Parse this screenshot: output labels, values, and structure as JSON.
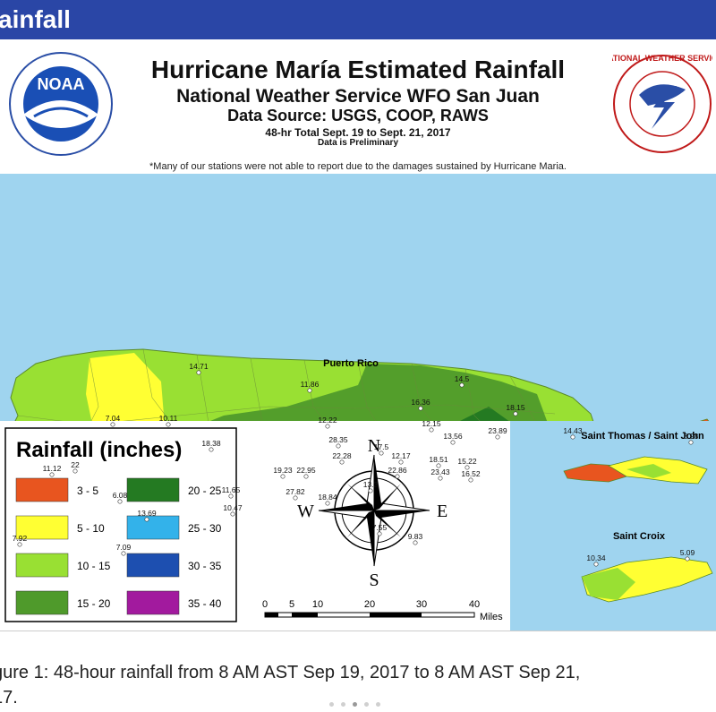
{
  "page": {
    "header_bar_text": "ainfall",
    "title": "Hurricane María Estimated Rainfall",
    "subtitle": "National Weather Service WFO San Juan",
    "data_source": "Data Source: USGS, COOP, RAWS",
    "period": "48-hr Total Sept. 19 to Sept. 21, 2017",
    "preliminary": "Data is Preliminary",
    "note": "*Many of our stations were not able to report due to the damages sustained by Hurricane Maria.",
    "caption_line1": "gure 1: 48-hour rainfall from 8 AM AST Sep 19, 2017 to 8 AM AST Sep 21,",
    "caption_line2": "17."
  },
  "logos": {
    "noaa_text": "NOAA",
    "nws_text": "NATIONAL WEATHER SERVICE"
  },
  "map": {
    "region_labels": {
      "puerto_rico": "Puerto Rico",
      "saint_thomas_john": "Saint Thomas / Saint John",
      "saint_croix": "Saint Croix"
    },
    "stations": [
      {
        "v": "14.71"
      },
      {
        "v": "11.86"
      },
      {
        "v": "14.5"
      },
      {
        "v": "7.04"
      },
      {
        "v": "10.11"
      },
      {
        "v": "16.36"
      },
      {
        "v": "18.15"
      },
      {
        "v": "12.22"
      },
      {
        "v": "12.15"
      },
      {
        "v": "23.89"
      },
      {
        "v": "14.43"
      },
      {
        "v": "18.38"
      },
      {
        "v": "28.35"
      },
      {
        "v": "13.56"
      },
      {
        "v": "17.5"
      },
      {
        "v": "22.28"
      },
      {
        "v": "12.17"
      },
      {
        "v": "18.51"
      },
      {
        "v": "15.22"
      },
      {
        "v": "22"
      },
      {
        "v": "11.12"
      },
      {
        "v": "19.23"
      },
      {
        "v": "22.95"
      },
      {
        "v": "22.86"
      },
      {
        "v": "23.43"
      },
      {
        "v": "16.52"
      },
      {
        "v": "11.65"
      },
      {
        "v": "13.3"
      },
      {
        "v": "6.08"
      },
      {
        "v": "27.82"
      },
      {
        "v": "18.84"
      },
      {
        "v": "10.47"
      },
      {
        "v": "13.69"
      },
      {
        "v": "7.55"
      },
      {
        "v": "9.83"
      },
      {
        "v": "7.92"
      },
      {
        "v": "7.09"
      },
      {
        "v": "3.98"
      },
      {
        "v": "10.34"
      },
      {
        "v": "5.09"
      }
    ]
  },
  "legend": {
    "title": "Rainfall (inches)",
    "items": [
      {
        "label": "3 - 5",
        "color": "#e8551f"
      },
      {
        "label": "5 - 10",
        "color": "#ffff33"
      },
      {
        "label": "10 - 15",
        "color": "#99e033"
      },
      {
        "label": "15 - 20",
        "color": "#4f9a2b"
      },
      {
        "label": "20 - 25",
        "color": "#247a22"
      },
      {
        "label": "25 - 30",
        "color": "#33b2ea"
      },
      {
        "label": "30 - 35",
        "color": "#1d4fb0"
      },
      {
        "label": "35 - 40",
        "color": "#a21a9e"
      }
    ]
  },
  "compass": {
    "n": "N",
    "s": "S",
    "e": "E",
    "w": "W"
  },
  "scale_bar": {
    "ticks": [
      "0",
      "5",
      "10",
      "20",
      "30",
      "40"
    ],
    "unit": "Miles"
  }
}
